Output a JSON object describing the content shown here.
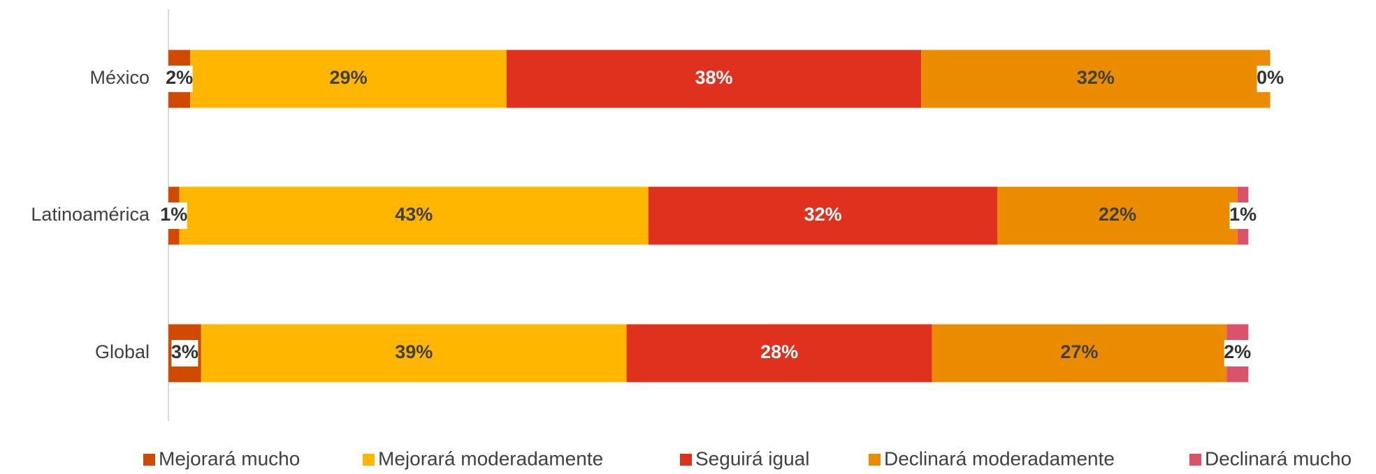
{
  "chart_data": {
    "type": "stacked_bar_horizontal",
    "categories": [
      "México",
      "Latinoamérica",
      "Global"
    ],
    "series": [
      {
        "name": "Mejorará mucho",
        "color": "#d04a02",
        "values": [
          2,
          1,
          3
        ],
        "value_labels": [
          "2%",
          "1%",
          "3%"
        ]
      },
      {
        "name": "Mejorará moderadamente",
        "color": "#ffb600",
        "values": [
          29,
          43,
          39
        ],
        "value_labels": [
          "29%",
          "43%",
          "39%"
        ]
      },
      {
        "name": "Seguirá igual",
        "color": "#e0301e",
        "values": [
          38,
          32,
          28
        ],
        "value_labels": [
          "38%",
          "32%",
          "28%"
        ]
      },
      {
        "name": "Declinará moderadamente",
        "color": "#eb8c00",
        "values": [
          32,
          22,
          27
        ],
        "value_labels": [
          "32%",
          "22%",
          "27%"
        ]
      },
      {
        "name": "Declinará mucho",
        "color": "#db536a",
        "values": [
          0,
          1,
          2
        ],
        "value_labels": [
          "0%",
          "1%",
          "2%"
        ]
      }
    ]
  }
}
